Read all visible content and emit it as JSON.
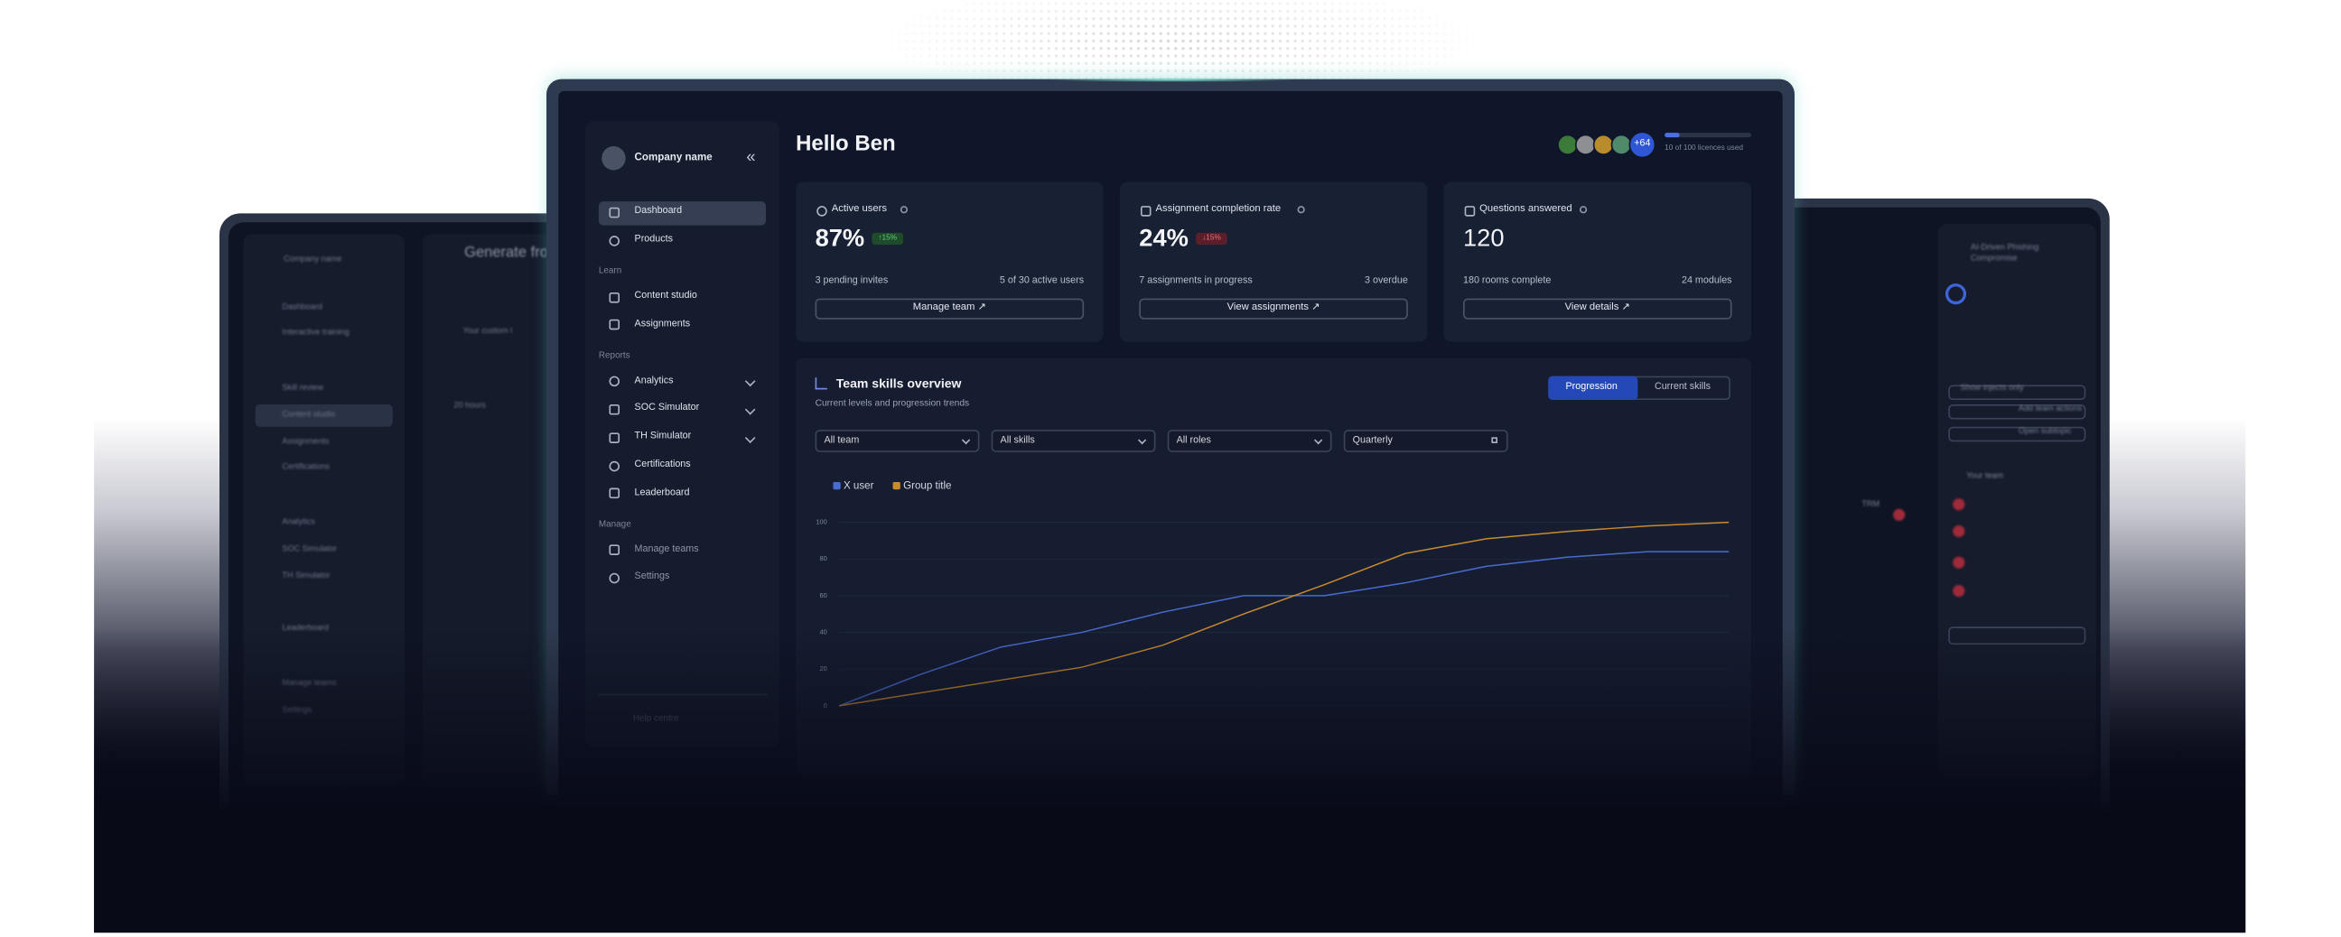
{
  "header": {
    "greeting": "Hello Ben",
    "avatars_extra": "+64",
    "licences": "10 of 100 licences used"
  },
  "sidebar": {
    "company_name": "Company name",
    "collapse": "«",
    "nav": [
      "Dashboard",
      "Products"
    ],
    "sections": [
      {
        "heading": "Learn",
        "items": [
          "Content studio",
          "Assignments"
        ]
      },
      {
        "heading": "Reports",
        "items": [
          "Analytics",
          "SOC Simulator",
          "TH Simulator",
          "Certifications",
          "Leaderboard"
        ]
      },
      {
        "heading": "Manage",
        "items": [
          "Manage teams",
          "Settings"
        ]
      }
    ],
    "footer": "Help centre"
  },
  "cards": [
    {
      "title": "Active users",
      "value": "87%",
      "badge": "↑15%",
      "left": "3 pending invites",
      "right": "5 of 30 active users",
      "button": "Manage team ↗"
    },
    {
      "title": "Assignment completion rate",
      "value": "24%",
      "badge": "↓15%",
      "left": "7 assignments in progress",
      "right": "3 overdue",
      "button": "View assignments ↗"
    },
    {
      "title": "Questions answered",
      "value": "120",
      "left": "180 rooms complete",
      "right": "24 modules",
      "button": "View details ↗"
    }
  ],
  "chart_controls": {
    "toggle": [
      "Progression",
      "Current skills"
    ],
    "filters": [
      "All team",
      "All skills",
      "All roles",
      "Quarterly"
    ]
  },
  "chart_data": {
    "type": "line",
    "title": "Team skills overview",
    "subtitle": "Current levels and progression trends",
    "categories": [
      null,
      null,
      null,
      null,
      null,
      null,
      null,
      null,
      null,
      null,
      null,
      null
    ],
    "ylim": [
      0,
      100
    ],
    "yticks": [
      0,
      20,
      40,
      60,
      80,
      100
    ],
    "grid": true,
    "series": [
      {
        "name": "X user",
        "color": "#4a6bd0",
        "values": [
          0,
          17,
          32,
          40,
          51,
          60,
          60,
          67,
          76,
          81,
          84,
          84
        ]
      },
      {
        "name": "Group title",
        "color": "#c98a2e",
        "values": [
          0,
          7,
          14,
          21,
          33,
          50,
          66,
          83,
          91,
          95,
          98,
          100
        ]
      }
    ]
  },
  "background_screens": {
    "left": [
      "Company name",
      "Dashboard",
      "Interactive training",
      "Skill review",
      "Content studio",
      "Assignments",
      "Certifications",
      "Analytics",
      "SOC Simulator",
      "TH Simulator",
      "Leaderboard",
      "Manage teams",
      "Settings",
      "Generate fro",
      "Your custom l",
      "20 hours"
    ],
    "right": [
      "AI-Driven Phishing Compromise",
      "Show injects only",
      "Add team actions",
      "Open subtopic",
      "Your team",
      "TRM"
    ]
  }
}
